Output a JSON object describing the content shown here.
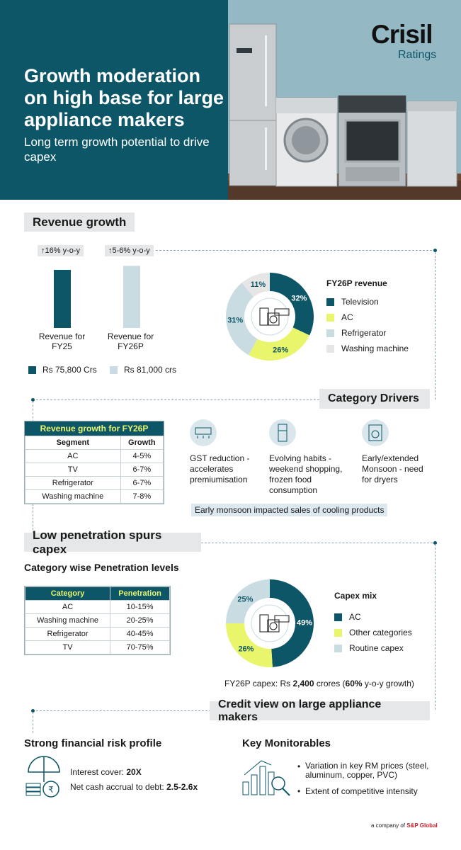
{
  "header": {
    "title": "Growth moderation on high base for large appliance makers",
    "subtitle": "Long term growth potential to drive capex",
    "logo": "Crisil",
    "logo_sub": "Ratings"
  },
  "revenue": {
    "heading": "Revenue growth",
    "fy25_growth": "↑16% y-o-y",
    "fy26_growth": "↑5-6% y-o-y",
    "fy25_label": "Revenue for FY25",
    "fy26_label": "Revenue for FY26P",
    "legend_fy25": "Rs 75,800 Crs",
    "legend_fy26": "Rs 81,000 crs"
  },
  "category_drivers": {
    "heading": "Category Drivers",
    "d1": "GST reduction - accelerates premiumisation",
    "d2": "Evolving habits - weekend shopping, frozen food consumption",
    "d3": "Early/extended Monsoon - need for dryers",
    "note": "Early monsoon impacted sales of cooling products"
  },
  "growth_table": {
    "title": "Revenue growth for FY26P",
    "col1": "Segment",
    "col2": "Growth",
    "rows": [
      {
        "segment": "AC",
        "growth": "4-5%"
      },
      {
        "segment": "TV",
        "growth": "6-7%"
      },
      {
        "segment": "Refrigerator",
        "growth": "6-7%"
      },
      {
        "segment": "Washing machine",
        "growth": "7-8%"
      }
    ]
  },
  "penetration": {
    "heading": "Low penetration spurs capex",
    "subheading": "Category wise Penetration levels",
    "col1": "Category",
    "col2": "Penetration",
    "rows": [
      {
        "category": "AC",
        "value": "10-15%"
      },
      {
        "category": "Washing machine",
        "value": "20-25%"
      },
      {
        "category": "Refrigerator",
        "value": "40-45%"
      },
      {
        "category": "TV",
        "value": "70-75%"
      }
    ]
  },
  "capex": {
    "footnote_prefix": "FY26P capex: Rs ",
    "footnote_amount": "2,400",
    "footnote_mid": " crores (",
    "footnote_pct": "60%",
    "footnote_suffix": " y-o-y growth)"
  },
  "credit": {
    "heading": "Credit view on large appliance makers",
    "left_title": "Strong financial risk profile",
    "interest_label": "Interest cover: ",
    "interest_value": "20X",
    "nca_label": "Net cash accrual to debt: ",
    "nca_value": "2.5-2.6x",
    "right_title": "Key Monitorables",
    "bullet1": "Variation in key RM prices (steel, aluminum, copper, PVC)",
    "bullet2": "Extent of competitive intensity"
  },
  "footer": {
    "prefix": "a company of",
    "brand": "S&P Global"
  },
  "colors": {
    "teal": "#0d5668",
    "yellow": "#e9f56a",
    "lightblue": "#c9dce2",
    "lightgray": "#e6e6e6"
  },
  "chart_data": [
    {
      "type": "bar",
      "title": "Revenue growth",
      "categories": [
        "Revenue for FY25",
        "Revenue for FY26P"
      ],
      "values": [
        75800,
        81000
      ],
      "unit": "Rs crore",
      "ylim": [
        0,
        85000
      ]
    },
    {
      "type": "pie",
      "title": "FY26P revenue",
      "labels": [
        "Television",
        "AC",
        "Refrigerator",
        "Washing machine"
      ],
      "values": [
        32,
        26,
        31,
        11
      ],
      "value_labels": [
        "32%",
        "26%",
        "31%",
        "11%"
      ],
      "colors": [
        "#0d5668",
        "#e9f56a",
        "#c9dce2",
        "#e6e6e6"
      ]
    },
    {
      "type": "pie",
      "title": "Capex mix",
      "labels": [
        "AC",
        "Other categories",
        "Routine capex"
      ],
      "values": [
        49,
        26,
        25
      ],
      "value_labels": [
        "49%",
        "26%",
        "25%"
      ],
      "colors": [
        "#0d5668",
        "#e9f56a",
        "#c9dce2"
      ]
    }
  ]
}
